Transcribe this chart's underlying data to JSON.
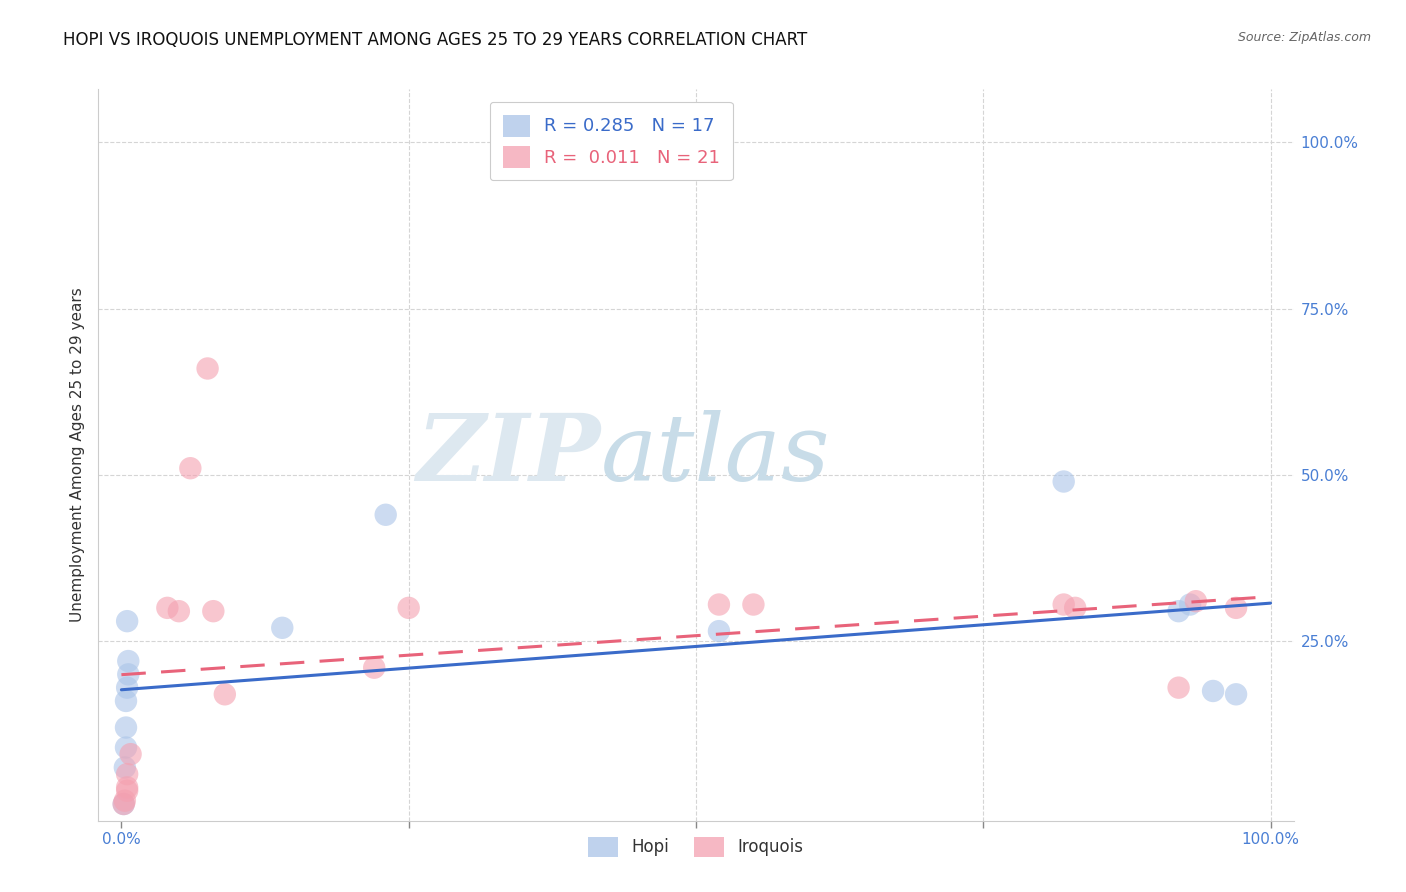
{
  "title": "HOPI VS IROQUOIS UNEMPLOYMENT AMONG AGES 25 TO 29 YEARS CORRELATION CHART",
  "source": "Source: ZipAtlas.com",
  "ylabel": "Unemployment Among Ages 25 to 29 years",
  "xlabel": "",
  "hopi_R": 0.285,
  "hopi_N": 17,
  "iroquois_R": 0.011,
  "iroquois_N": 21,
  "hopi_color": "#aac4e8",
  "iroquois_color": "#f4a0b0",
  "hopi_line_color": "#3a6bc9",
  "iroquois_line_color": "#e8637a",
  "background": "#ffffff",
  "xlim": [
    -0.02,
    1.02
  ],
  "ylim": [
    -0.02,
    1.08
  ],
  "hopi_x": [
    0.002,
    0.003,
    0.004,
    0.004,
    0.004,
    0.005,
    0.005,
    0.006,
    0.006,
    0.14,
    0.23,
    0.52,
    0.82,
    0.92,
    0.93,
    0.95,
    0.97
  ],
  "hopi_y": [
    0.005,
    0.06,
    0.09,
    0.12,
    0.16,
    0.18,
    0.28,
    0.2,
    0.22,
    0.27,
    0.44,
    0.265,
    0.49,
    0.295,
    0.305,
    0.175,
    0.17
  ],
  "iroquois_x": [
    0.002,
    0.003,
    0.005,
    0.005,
    0.005,
    0.008,
    0.04,
    0.05,
    0.06,
    0.075,
    0.08,
    0.09,
    0.22,
    0.25,
    0.52,
    0.55,
    0.82,
    0.83,
    0.92,
    0.935,
    0.97
  ],
  "iroquois_y": [
    0.005,
    0.01,
    0.025,
    0.03,
    0.05,
    0.08,
    0.3,
    0.295,
    0.51,
    0.66,
    0.295,
    0.17,
    0.21,
    0.3,
    0.305,
    0.305,
    0.305,
    0.3,
    0.18,
    0.31,
    0.3
  ],
  "xticks": [
    0.0,
    0.25,
    0.5,
    0.75,
    1.0
  ],
  "xtick_labels": [
    "0.0%",
    "",
    "",
    "",
    "100.0%"
  ],
  "ytick_right": [
    0.0,
    0.25,
    0.5,
    0.75,
    1.0
  ],
  "ytick_right_labels": [
    "",
    "25.0%",
    "50.0%",
    "75.0%",
    "100.0%"
  ],
  "title_fontsize": 12,
  "label_fontsize": 11,
  "tick_fontsize": 11,
  "watermark_zip": "ZIP",
  "watermark_atlas": "atlas",
  "watermark_color_zip": "#dde8f0",
  "watermark_color_atlas": "#c8dce8",
  "legend_fontsize": 13
}
